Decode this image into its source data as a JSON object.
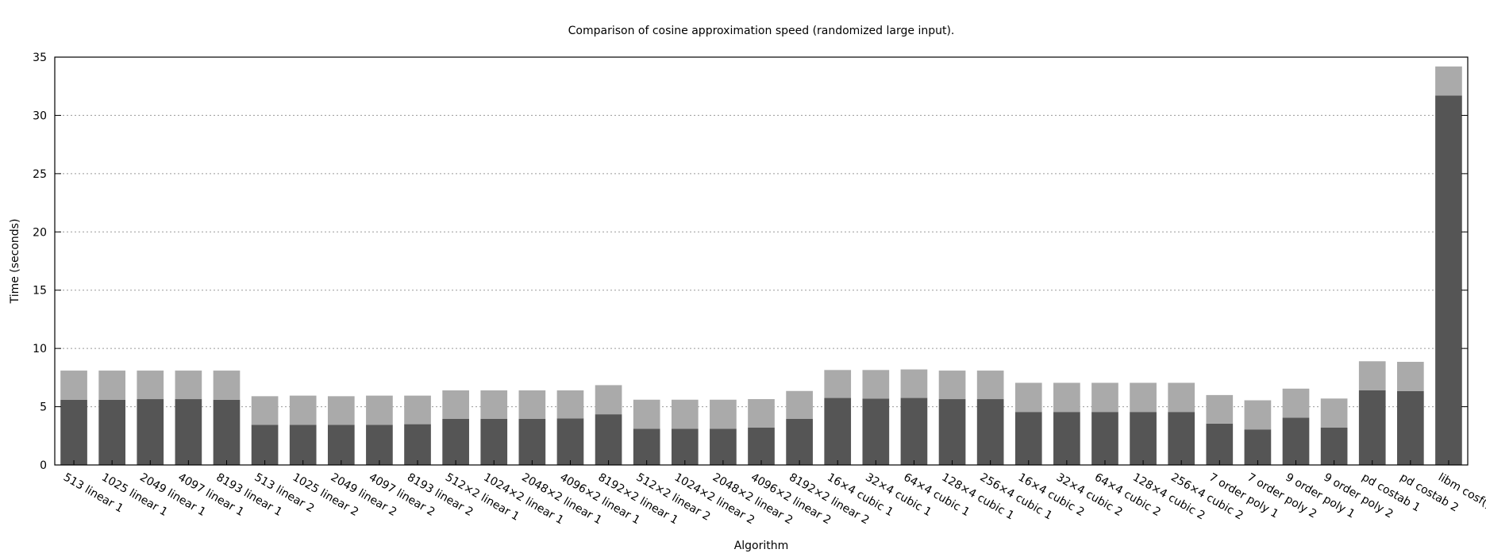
{
  "chart_data": {
    "type": "bar",
    "stacked": true,
    "title": "Comparison of cosine approximation speed (randomized large input).",
    "xlabel": "Algorithm",
    "ylabel": "Time (seconds)",
    "ylim": [
      0,
      35
    ],
    "yticks": [
      0,
      5,
      10,
      15,
      20,
      25,
      30,
      35
    ],
    "grid": "horizontal dotted",
    "legend": "none",
    "colors": {
      "bottom": "#555555",
      "top": "#aaaaaa"
    },
    "categories": [
      "513 linear 1",
      "1025 linear 1",
      "2049 linear 1",
      "4097 linear 1",
      "8193 linear 1",
      "513 linear 2",
      "1025 linear 2",
      "2049 linear 2",
      "4097 linear 2",
      "8193 linear 2",
      "512×2 linear 1",
      "1024×2 linear 1",
      "2048×2 linear 1",
      "4096×2 linear 1",
      "8192×2 linear 1",
      "512×2 linear 2",
      "1024×2 linear 2",
      "2048×2 linear 2",
      "4096×2 linear 2",
      "8192×2 linear 2",
      "16×4 cubic 1",
      "32×4 cubic 1",
      "64×4 cubic 1",
      "128×4 cubic 1",
      "256×4 cubic 1",
      "16×4 cubic 2",
      "32×4 cubic 2",
      "64×4 cubic 2",
      "128×4 cubic 2",
      "256×4 cubic 2",
      "7 order poly 1",
      "7 order poly 2",
      "9 order poly 1",
      "9 order poly 2",
      "pd costab 1",
      "pd costab 2",
      "libm cosf()"
    ],
    "series": [
      {
        "values": [
          5.6,
          5.6,
          5.65,
          5.65,
          5.6,
          3.45,
          3.45,
          3.45,
          3.45,
          3.5,
          3.95,
          3.95,
          3.95,
          4.0,
          4.35,
          3.1,
          3.1,
          3.1,
          3.2,
          3.95,
          5.75,
          5.7,
          5.75,
          5.65,
          5.65,
          4.55,
          4.55,
          4.55,
          4.55,
          4.55,
          3.55,
          3.05,
          4.05,
          3.2,
          6.4,
          6.35,
          31.7
        ]
      },
      {
        "values": [
          2.5,
          2.5,
          2.45,
          2.45,
          2.5,
          2.45,
          2.5,
          2.45,
          2.5,
          2.45,
          2.45,
          2.45,
          2.45,
          2.4,
          2.5,
          2.5,
          2.5,
          2.5,
          2.45,
          2.4,
          2.4,
          2.45,
          2.45,
          2.45,
          2.45,
          2.5,
          2.5,
          2.5,
          2.5,
          2.5,
          2.45,
          2.5,
          2.5,
          2.5,
          2.5,
          2.5,
          2.5
        ]
      }
    ]
  }
}
